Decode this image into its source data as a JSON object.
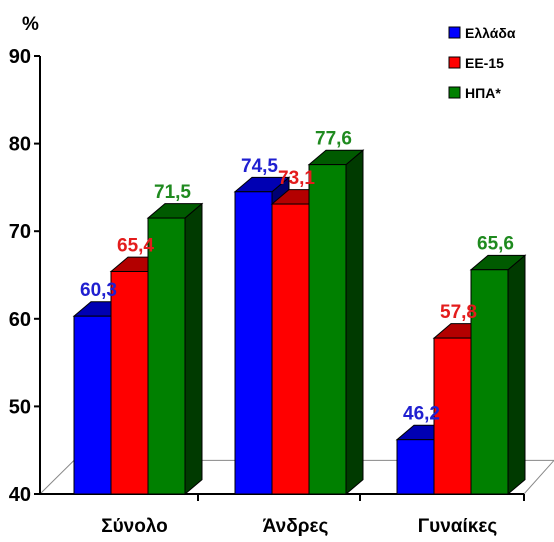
{
  "chart_data": {
    "type": "bar",
    "title": "",
    "xlabel": "",
    "ylabel": "%",
    "ylim": [
      40,
      90
    ],
    "yticks": [
      40,
      50,
      60,
      70,
      80,
      90
    ],
    "categories": [
      "Σύνολο",
      "Άνδρες",
      "Γυναίκες"
    ],
    "series": [
      {
        "name": "Ελλάδα",
        "color": "#0000ff",
        "values": [
          60.3,
          74.5,
          46.2
        ],
        "labels": [
          "60,3",
          "74,5",
          "46,2"
        ]
      },
      {
        "name": "ΕΕ-15",
        "color": "#ff0000",
        "values": [
          65.4,
          73.1,
          57.8
        ],
        "labels": [
          "65,4",
          "73,1",
          "57,8"
        ]
      },
      {
        "name": "ΗΠΑ*",
        "color": "#008000",
        "values": [
          71.5,
          77.6,
          65.6
        ],
        "labels": [
          "71,5",
          "77,6",
          "65,6"
        ]
      }
    ],
    "label_colors": [
      "#1f1fd0",
      "#e31c1c",
      "#1f8a1f"
    ],
    "grid": false,
    "legend_position": "top-right",
    "style": "3d"
  }
}
